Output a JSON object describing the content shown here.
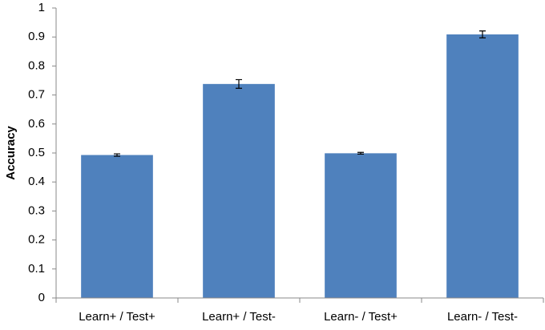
{
  "chart_data": {
    "type": "bar",
    "y_label": "Accuracy",
    "categories": [
      "Learn+ / Test+",
      "Learn+ / Test-",
      "Learn- / Test+",
      "Learn- / Test-"
    ],
    "values": [
      0.493,
      0.738,
      0.499,
      0.909
    ],
    "errors": [
      0.004,
      0.015,
      0.003,
      0.012
    ],
    "color": "#4f81bd",
    "ylim": [
      0,
      1
    ],
    "yticks": [
      0,
      0.1,
      0.2,
      0.3,
      0.4,
      0.5,
      0.6,
      0.7,
      0.8,
      0.9,
      1
    ],
    "grid": false
  }
}
